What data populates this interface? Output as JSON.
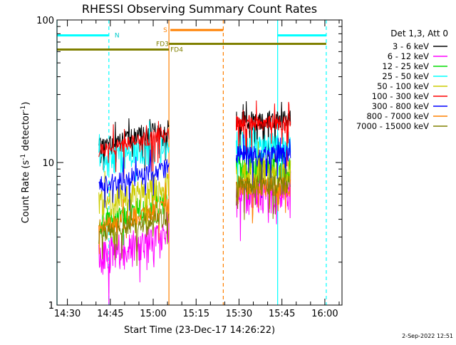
{
  "chart_data": {
    "type": "line",
    "title": "RHESSI Observing Summary Count Rates",
    "xlabel": "Start Time (23-Dec-17 14:26:22)",
    "ylabel_main": "Count Rate (s",
    "ylabel_sup": "-1",
    "ylabel_mid": " detector",
    "ylabel_end": ")",
    "xlim": [
      "14:26:22",
      "16:06:00"
    ],
    "x_start_minutes": 866.3667,
    "x_end_minutes": 966.0,
    "ylim": [
      1,
      100
    ],
    "yscale": "log",
    "x_ticks": [
      {
        "label": "14:30",
        "t": "14:30"
      },
      {
        "label": "14:45",
        "t": "14:45"
      },
      {
        "label": "15:00",
        "t": "15:00"
      },
      {
        "label": "15:15",
        "t": "15:15"
      },
      {
        "label": "15:30",
        "t": "15:30"
      },
      {
        "label": "15:45",
        "t": "15:45"
      },
      {
        "label": "16:00",
        "t": "16:00"
      }
    ],
    "y_ticks": [
      {
        "label": "1",
        "value": 1
      },
      {
        "label": "10",
        "value": 10
      },
      {
        "label": "100",
        "value": 100
      }
    ],
    "legend_title": "Det 1,3, Att 0",
    "legend_position": "right",
    "segments": [
      {
        "start": "14:41:00",
        "end": "15:05:30"
      },
      {
        "start": "15:29:00",
        "end": "15:48:00"
      }
    ],
    "series": [
      {
        "name": "3 - 6 keV",
        "color": "#000000",
        "levels": [
          15.0,
          20.0
        ],
        "noise": 0.1
      },
      {
        "name": "6 - 12 keV",
        "color": "#ff00ff",
        "levels": [
          2.6,
          6.0
        ],
        "noise": 0.18
      },
      {
        "name": "12 - 25 keV",
        "color": "#00dd00",
        "levels": [
          4.5,
          9.5
        ],
        "noise": 0.15
      },
      {
        "name": "25 - 50 keV",
        "color": "#00ffff",
        "levels": [
          11.5,
          13.5
        ],
        "noise": 0.14
      },
      {
        "name": "50 - 100 keV",
        "color": "#cccc00",
        "levels": [
          6.0,
          8.5
        ],
        "noise": 0.15
      },
      {
        "name": "100 - 300 keV",
        "color": "#ff0000",
        "levels": [
          14.0,
          19.0
        ],
        "noise": 0.08
      },
      {
        "name": "300 - 800 keV",
        "color": "#0000ff",
        "levels": [
          8.0,
          11.5
        ],
        "noise": 0.1
      },
      {
        "name": "800 - 7000 keV",
        "color": "#ff8000",
        "levels": [
          4.2,
          6.8
        ],
        "noise": 0.1
      },
      {
        "name": "7000 - 15000 keV",
        "color": "#808000",
        "levels": [
          3.7,
          7.0
        ],
        "noise": 0.1
      }
    ],
    "flag_lines": [
      {
        "label": "N",
        "color": "#00ffff",
        "value": 78,
        "ranges": [
          [
            "14:26:22",
            "14:44:30"
          ],
          [
            "15:43:30",
            "16:00:30"
          ]
        ],
        "label_at": "14:46:30",
        "label_color": "#00cccc"
      },
      {
        "label": "S",
        "color": "#ff8000",
        "value": 85,
        "ranges": [
          [
            "15:06:00",
            "15:24:30"
          ]
        ],
        "label_at": "15:03:30",
        "label_color": "#ff8000"
      },
      {
        "label": "FD3",
        "color": "#808000",
        "value": 68,
        "ranges": [
          [
            "15:05:30",
            "16:00:30"
          ]
        ],
        "label_at": "15:01:00",
        "label_color": "#808000"
      },
      {
        "label": "FD4",
        "color": "#808000",
        "value": 62,
        "ranges": [
          [
            "14:26:22",
            "15:05:30"
          ]
        ],
        "label_at": "15:06:00",
        "label_color": "#808000"
      }
    ],
    "vertical_lines": [
      {
        "t": "14:26:22",
        "color": "#00ffff",
        "dashed": false
      },
      {
        "t": "14:44:30",
        "color": "#00ffff",
        "dashed": true
      },
      {
        "t": "15:05:30",
        "color": "#ff8000",
        "dashed": false
      },
      {
        "t": "15:24:30",
        "color": "#ff8000",
        "dashed": true
      },
      {
        "t": "15:43:30",
        "color": "#00ffff",
        "dashed": false
      },
      {
        "t": "16:00:30",
        "color": "#00ffff",
        "dashed": true
      }
    ],
    "grid": false
  },
  "footer": {
    "timestamp": "2-Sep-2022 12:51"
  }
}
